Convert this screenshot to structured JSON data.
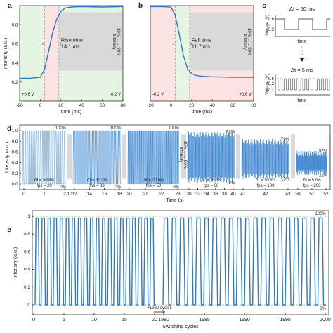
{
  "colors": {
    "signal": "#2f78c4",
    "shade_gray": "#d8d8d8",
    "shade_green": "#e6f4e4",
    "shade_red": "#fbe3e3"
  },
  "chart_data": [
    {
      "panel": "a",
      "type": "line",
      "xlabel": "time (ms)",
      "ylabel": "Intensity (a.u.)",
      "xlim": [
        -20,
        80
      ],
      "ylim": [
        0,
        1.0
      ],
      "xticks": [
        "-20",
        "0",
        "20",
        "40",
        "60",
        "80"
      ],
      "yticks": [
        "0.2",
        "0.4",
        "0.6",
        "0.8"
      ],
      "annotations": {
        "time_label": "Rise time",
        "time_value": "14.1 ms",
        "left_voltage": "+0.6 V",
        "right_voltage": "-0.2 V",
        "band_label": "10% ←→ 90%",
        "band_word": "Intensity"
      },
      "x": [
        -20,
        -10,
        0,
        4,
        8,
        12,
        16,
        20,
        24,
        30,
        40,
        60,
        80
      ],
      "y": [
        0.24,
        0.24,
        0.25,
        0.33,
        0.52,
        0.72,
        0.86,
        0.94,
        0.975,
        0.985,
        0.99,
        0.985,
        0.99
      ]
    },
    {
      "panel": "b",
      "type": "line",
      "xlabel": "time (ms)",
      "xlim": [
        -20,
        80
      ],
      "ylim": [
        0,
        1.0
      ],
      "xticks": [
        "-20",
        "0",
        "20",
        "40",
        "60",
        "80"
      ],
      "annotations": {
        "time_label": "Fall time",
        "time_value": "11.7 ms",
        "left_voltage": "-0.2 V",
        "right_voltage": "+0.6 V",
        "band_label": "10% ←→ 90%",
        "band_word": "Intensity"
      },
      "x": [
        -20,
        -10,
        0,
        4,
        8,
        12,
        16,
        20,
        24,
        30,
        40,
        60,
        80
      ],
      "y": [
        0.99,
        0.99,
        0.985,
        0.9,
        0.7,
        0.48,
        0.34,
        0.29,
        0.27,
        0.26,
        0.255,
        0.25,
        0.25
      ]
    },
    {
      "panel": "c",
      "type": "line",
      "ylabel": "Voltage (V)",
      "xlabel": "time",
      "top": {
        "label": "Δt = 50 ms",
        "yticks": [
          "0.6",
          "-0.2"
        ]
      },
      "bottom": {
        "label": "Δt = 5 ms",
        "yticks": [
          "0.6",
          "0.2",
          "-0.2"
        ]
      }
    },
    {
      "panel": "d",
      "type": "line",
      "xlabel": "Time (s)",
      "ylabel": "Intensity (a.u.)",
      "yticks": [
        "0.0",
        "0.2",
        "0.4",
        "0.6",
        "0.8",
        "1.0"
      ],
      "band_label": "10% ←→ 90%",
      "band_word": "Intensity",
      "segments": [
        {
          "dt": "Δt = 50 ms",
          "fps": "fps = 20",
          "max": 1.0,
          "min": 0.0,
          "top_label": "100%",
          "bottom_label": "0%",
          "cycles": 20,
          "xticks": [
            "0",
            "1",
            "2"
          ],
          "xticks_minor": [
            "10"
          ]
        },
        {
          "dt": "Δt = 30 ms",
          "fps": "fps = 33",
          "max": 1.0,
          "min": 0.0,
          "top_label": "100%",
          "bottom_label": "0%",
          "cycles": 33,
          "xticks": [
            "12",
            "14",
            "16",
            "18"
          ]
        },
        {
          "dt": "Δt = 20 ms",
          "fps": "fps = 50",
          "max": 1.0,
          "min": 0.0,
          "top_label": "100%",
          "bottom_label": "0%",
          "cycles": 50,
          "xticks": [
            "20",
            "21",
            "22",
            "23"
          ]
        },
        {
          "dt": "Δt = 15 ms",
          "fps": "fps = 66",
          "max": 0.93,
          "min": 0.08,
          "top_label": "93%",
          "bottom_label": "8%",
          "cycles": 66,
          "xticks": [
            "30",
            "32",
            "34",
            "36",
            "38",
            "40"
          ]
        },
        {
          "dt": "Δt = 10 ms",
          "fps": "fps = 100",
          "max": 0.79,
          "min": 0.15,
          "top_label": "79%",
          "bottom_label": "15%",
          "cycles": 100,
          "xticks": [
            "41",
            "42",
            "43"
          ]
        },
        {
          "dt": "Δt = 5 ms",
          "fps": "fps = 200",
          "max": 0.57,
          "min": 0.22,
          "top_label": "57%",
          "bottom_label": "22%",
          "cycles": 200,
          "xticks": [
            "50",
            "51",
            "52"
          ]
        }
      ]
    },
    {
      "panel": "e",
      "type": "line",
      "ylabel": "Intensity (a.u.)",
      "xlabel": "Switching cycles",
      "ylim": [
        0,
        1.0
      ],
      "yticks": [
        "0",
        "0.2",
        "0.4",
        "0.6",
        "0.8",
        "1"
      ],
      "xticks": [
        "0",
        "5",
        "10",
        "15",
        "20",
        "1980",
        "1985",
        "1990",
        "1995",
        "2000"
      ],
      "top_label": "100%",
      "bottom_label": "0%",
      "break_label": "+1960 cycles",
      "cycles_left": 20,
      "cycles_right": 20
    }
  ]
}
